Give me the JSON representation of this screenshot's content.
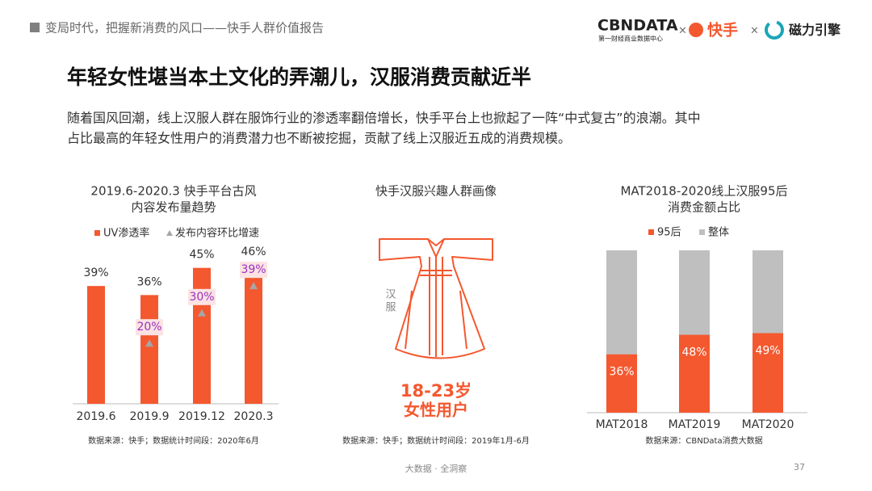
{
  "header": {
    "text": "变局时代，把握新消费的风口——快手人群价值报告",
    "logo_main": "CBNDATA",
    "logo_sub": "第一财经商业数据中心",
    "sep": "×",
    "logo_ks": "快手",
    "logo_cili": "磁力引擎"
  },
  "title": "年轻女性堪当本土文化的弄潮儿，汉服消费贡献近半",
  "body": [
    "随着国风回潮，线上汉服人群在服饰行业的渗透率翻倍增长，快手平台上也掀起了一阵“中式复古”的浪潮。其中",
    "占比最高的年轻女性用户的消费潜力也不断被挖掘，贡献了线上汉服近五成的消费规模。"
  ],
  "chart_data": [
    {
      "type": "bar",
      "title": [
        "2019.6-2020.3 快手平台古风",
        "内容发布量趋势"
      ],
      "categories": [
        "2019.6",
        "2019.9",
        "2019.12",
        "2020.3"
      ],
      "series": [
        {
          "name": "UV渗透率",
          "color": "#f4582f",
          "values": [
            39,
            36,
            45,
            46
          ],
          "value_labels": [
            "39%",
            "36%",
            "45%",
            "46%"
          ]
        },
        {
          "name": "发布内容环比增速",
          "color": "#a6a6a6",
          "marker": "triangle",
          "values": [
            null,
            20,
            30,
            39
          ],
          "value_labels": [
            null,
            "20%",
            "30%",
            "39%"
          ]
        }
      ],
      "source": "数据来源：快手；数据统计时间段：2020年6月"
    },
    {
      "type": "stacked_bar",
      "title": [
        "MAT2018-2020线上汉服95后",
        "消费金额占比"
      ],
      "categories": [
        "MAT2018",
        "MAT2019",
        "MAT2020"
      ],
      "series": [
        {
          "name": "95后",
          "color": "#f4582f",
          "values": [
            36,
            48,
            49
          ],
          "value_labels": [
            "36%",
            "48%",
            "49%"
          ]
        },
        {
          "name": "整体",
          "color": "#bfbfbf",
          "values": [
            64,
            52,
            51
          ]
        }
      ],
      "source": "数据来源：CBNData消费大数据"
    }
  ],
  "portrait": {
    "title": "快手汉服兴趣人群画像",
    "label": [
      "汉",
      "服"
    ],
    "age": "18-23岁",
    "group": "女性用户",
    "source": "数据来源：快手；数据统计时间段：2019年1月-6月"
  },
  "footer": {
    "text": "大数据 · 全洞察",
    "page": "37"
  }
}
